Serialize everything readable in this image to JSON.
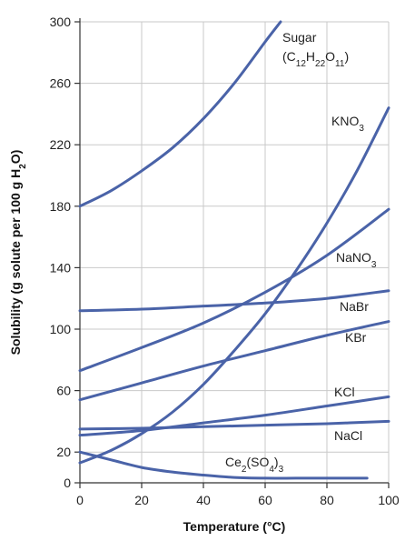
{
  "chart_data": {
    "type": "line",
    "xlabel": "Temperature (°C)",
    "ylabel_parts": [
      "Solubility (g solute per 100 g H",
      "2",
      "O)"
    ],
    "xlim": [
      0,
      100
    ],
    "ylim": [
      0,
      300
    ],
    "xticks": [
      0,
      20,
      40,
      60,
      80,
      100
    ],
    "yticks": [
      0,
      20,
      60,
      100,
      140,
      180,
      220,
      260,
      300
    ],
    "grid": true,
    "line_color": "#4a63a8",
    "series": [
      {
        "name": "Sugar (C12H22O11)",
        "label_lines": [
          [
            [
              "Sugar",
              ""
            ]
          ],
          [
            [
              "(C",
              ""
            ],
            [
              "12",
              "sub"
            ],
            [
              "H",
              ""
            ],
            [
              "22",
              "sub"
            ],
            [
              "O",
              ""
            ],
            [
              "11",
              "sub"
            ],
            [
              ")",
              ""
            ]
          ]
        ],
        "x": [
          0,
          10,
          20,
          30,
          40,
          50,
          60,
          65
        ],
        "y": [
          180,
          190,
          203,
          218,
          237,
          260,
          287,
          300
        ]
      },
      {
        "name": "KNO3",
        "label_lines": [
          [
            [
              "KNO",
              ""
            ],
            [
              "3",
              "sub"
            ]
          ]
        ],
        "x": [
          0,
          10,
          20,
          30,
          40,
          50,
          60,
          70,
          80,
          90,
          100
        ],
        "y": [
          13,
          21,
          32,
          46,
          64,
          86,
          110,
          138,
          169,
          204,
          244
        ]
      },
      {
        "name": "NaNO3",
        "label_lines": [
          [
            [
              "NaNO",
              ""
            ],
            [
              "3",
              "sub"
            ]
          ]
        ],
        "x": [
          0,
          20,
          40,
          60,
          80,
          100
        ],
        "y": [
          73,
          88,
          104,
          124,
          148,
          178
        ]
      },
      {
        "name": "NaBr",
        "label_lines": [
          [
            [
              "NaBr",
              ""
            ]
          ]
        ],
        "x": [
          0,
          20,
          40,
          60,
          80,
          100
        ],
        "y": [
          112,
          113,
          115,
          117,
          120,
          125
        ]
      },
      {
        "name": "KBr",
        "label_lines": [
          [
            [
              "KBr",
              ""
            ]
          ]
        ],
        "x": [
          0,
          20,
          40,
          60,
          80,
          100
        ],
        "y": [
          54,
          65,
          76,
          86,
          96,
          105
        ]
      },
      {
        "name": "KCl",
        "label_lines": [
          [
            [
              "KCl",
              ""
            ]
          ]
        ],
        "x": [
          0,
          20,
          40,
          60,
          80,
          100
        ],
        "y": [
          31,
          34,
          39,
          44,
          50,
          56
        ]
      },
      {
        "name": "NaCl",
        "label_lines": [
          [
            [
              "NaCl",
              ""
            ]
          ]
        ],
        "x": [
          0,
          20,
          40,
          60,
          80,
          100
        ],
        "y": [
          35,
          35.5,
          36.5,
          37.5,
          38.5,
          40
        ]
      },
      {
        "name": "Ce2(SO4)3",
        "label_lines": [
          [
            [
              "Ce",
              ""
            ],
            [
              "2",
              "sub"
            ],
            [
              "(SO",
              ""
            ],
            [
              "4",
              "sub"
            ],
            [
              ")",
              ""
            ],
            [
              "3",
              "sub"
            ]
          ]
        ],
        "x": [
          0,
          10,
          20,
          30,
          40,
          50,
          60,
          70,
          80,
          93
        ],
        "y": [
          20,
          15,
          10,
          7,
          5,
          3.5,
          3,
          3,
          3,
          3
        ]
      }
    ]
  }
}
